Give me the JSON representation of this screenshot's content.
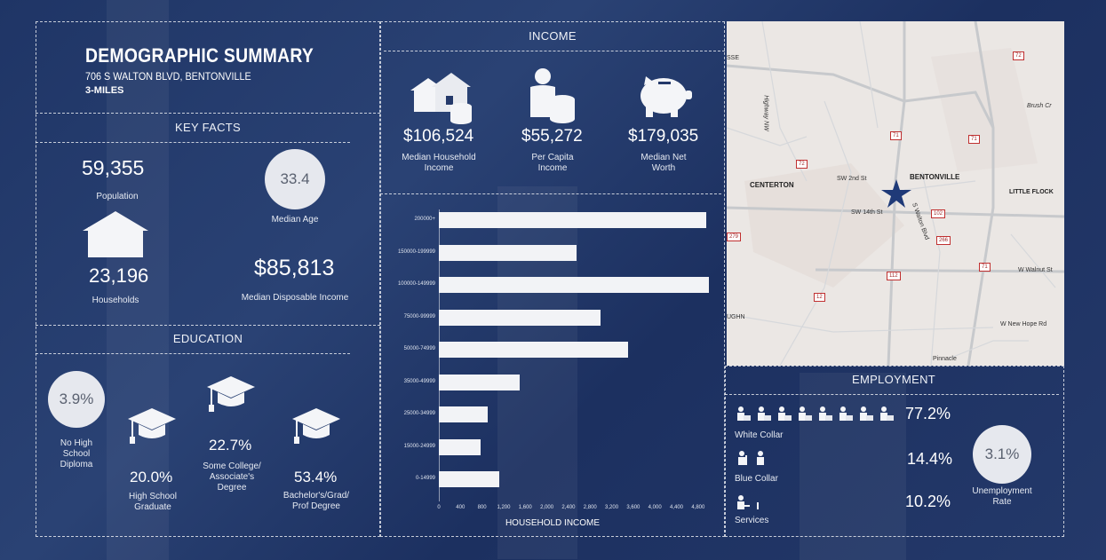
{
  "header": {
    "title": "DEMOGRAPHIC SUMMARY",
    "address": "706 S WALTON BLVD, BENTONVILLE",
    "radius": "3-MILES"
  },
  "key_facts": {
    "title": "KEY FACTS",
    "population_value": "59,355",
    "population_label": "Population",
    "median_age_value": "33.4",
    "median_age_label": "Median Age",
    "households_value": "23,196",
    "households_label": "Households",
    "disposable_income_value": "$85,813",
    "disposable_income_label": "Median Disposable Income"
  },
  "education": {
    "title": "EDUCATION",
    "no_hs_value": "3.9%",
    "no_hs_label_1": "No High",
    "no_hs_label_2": "School",
    "no_hs_label_3": "Diploma",
    "hs_value": "20.0%",
    "hs_label_1": "High School",
    "hs_label_2": "Graduate",
    "college_value": "22.7%",
    "college_label_1": "Some College/",
    "college_label_2": "Associate's",
    "college_label_3": "Degree",
    "bachelor_value": "53.4%",
    "bachelor_label_1": "Bachelor's/Grad/",
    "bachelor_label_2": "Prof Degree"
  },
  "income": {
    "title": "INCOME",
    "median_household_value": "$106,524",
    "median_household_label_1": "Median Household",
    "median_household_label_2": "Income",
    "per_capita_value": "$55,272",
    "per_capita_label_1": "Per Capita",
    "per_capita_label_2": "Income",
    "net_worth_value": "$179,035",
    "net_worth_label_1": "Median Net",
    "net_worth_label_2": "Worth"
  },
  "chart_data": {
    "type": "bar",
    "orientation": "horizontal",
    "xlabel": "HOUSEHOLD INCOME",
    "categories": [
      "200000+",
      "150000-199999",
      "100000-149999",
      "75000-99999",
      "50000-74999",
      "35000-49999",
      "25000-34999",
      "15000-24999",
      "0-14999"
    ],
    "values": [
      4950,
      2550,
      5000,
      3000,
      3500,
      1500,
      900,
      780,
      1120
    ],
    "xlim": [
      0,
      5000
    ],
    "xticks": [
      "0",
      "400",
      "800",
      "1,200",
      "1,600",
      "2,000",
      "2,400",
      "2,800",
      "3,200",
      "3,600",
      "4,000",
      "4,400",
      "4,800"
    ]
  },
  "employment": {
    "title": "EMPLOYMENT",
    "white_collar_value": "77.2%",
    "white_collar_label": "White Collar",
    "blue_collar_value": "14.4%",
    "blue_collar_label": "Blue Collar",
    "services_value": "10.2%",
    "services_label": "Services",
    "unemployment_value": "3.1%",
    "unemployment_label_1": "Unemployment",
    "unemployment_label_2": "Rate"
  },
  "map": {
    "labels": {
      "bentonville": "BENTONVILLE",
      "centerton": "CENTERTON",
      "little_flock": "LITTLE FLOCK",
      "sw_2nd": "SW 2nd St",
      "sw_14th": "SW 14th St",
      "s_walton": "S Walton Blvd",
      "w_walnut": "W Walnut St",
      "w_new_hope": "W New Hope Rd",
      "pinnacle": "Pinnacle",
      "highway_nw": "Highway NW",
      "brush_cr": "Brush Cr",
      "sse": "SSE",
      "ughn": "UGHN"
    },
    "shields": [
      "72",
      "71",
      "71",
      "72",
      "102",
      "266",
      "279",
      "112",
      "71",
      "12"
    ]
  },
  "colors": {
    "background": "#24396a",
    "panel_border": "#ffffff",
    "bar": "#f2f3f6",
    "circle": "#e6e8ee",
    "marker": "#1f3a78"
  }
}
